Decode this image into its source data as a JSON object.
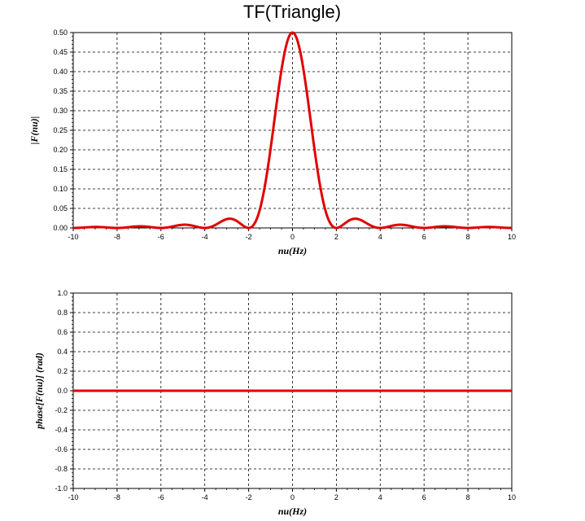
{
  "title": "TF(Triangle)",
  "chart_data": [
    {
      "type": "line",
      "title": "TF(Triangle)",
      "xlabel": "nu(Hz)",
      "ylabel": "|F(nu)|",
      "xlim": [
        -10,
        10
      ],
      "ylim": [
        0,
        0.5
      ],
      "x_ticks": [
        "-10",
        "-8",
        "-6",
        "-4",
        "-2",
        "0",
        "2",
        "4",
        "6",
        "8",
        "10"
      ],
      "y_ticks": [
        "0.00",
        "0.05",
        "0.10",
        "0.15",
        "0.20",
        "0.25",
        "0.30",
        "0.35",
        "0.40",
        "0.45",
        "0.50"
      ],
      "grid": true,
      "series": [
        {
          "color": "#e00000",
          "x": [
            -10,
            -9,
            -8,
            -7,
            -6,
            -5,
            -4,
            -3,
            -2.5,
            -2,
            -1.5,
            -1,
            -0.5,
            0,
            0.5,
            1,
            1.5,
            2,
            2.5,
            3,
            4,
            5,
            6,
            7,
            8,
            9,
            10
          ],
          "y": [
            0,
            0.0031,
            0,
            0.0052,
            0,
            0.0081,
            0,
            0.0225,
            0.0162,
            0,
            0.045,
            0.2026,
            0.4053,
            0.5,
            0.4053,
            0.2026,
            0.045,
            0,
            0.0162,
            0.0225,
            0,
            0.0081,
            0,
            0.0052,
            0,
            0.0031,
            0
          ]
        }
      ]
    },
    {
      "type": "line",
      "xlabel": "nu(Hz)",
      "ylabel": "phase[F(nu)] (rad)",
      "xlim": [
        -10,
        10
      ],
      "ylim": [
        -1,
        1
      ],
      "x_ticks": [
        "-10",
        "-8",
        "-6",
        "-4",
        "-2",
        "0",
        "2",
        "4",
        "6",
        "8",
        "10"
      ],
      "y_ticks": [
        "-1.0",
        "-0.8",
        "-0.6",
        "-0.4",
        "-0.2",
        "0.0",
        "0.2",
        "0.4",
        "0.6",
        "0.8",
        "1.0"
      ],
      "grid": true,
      "series": [
        {
          "color": "#e00000",
          "x": [
            -10,
            10
          ],
          "y": [
            0,
            0
          ]
        }
      ]
    }
  ]
}
